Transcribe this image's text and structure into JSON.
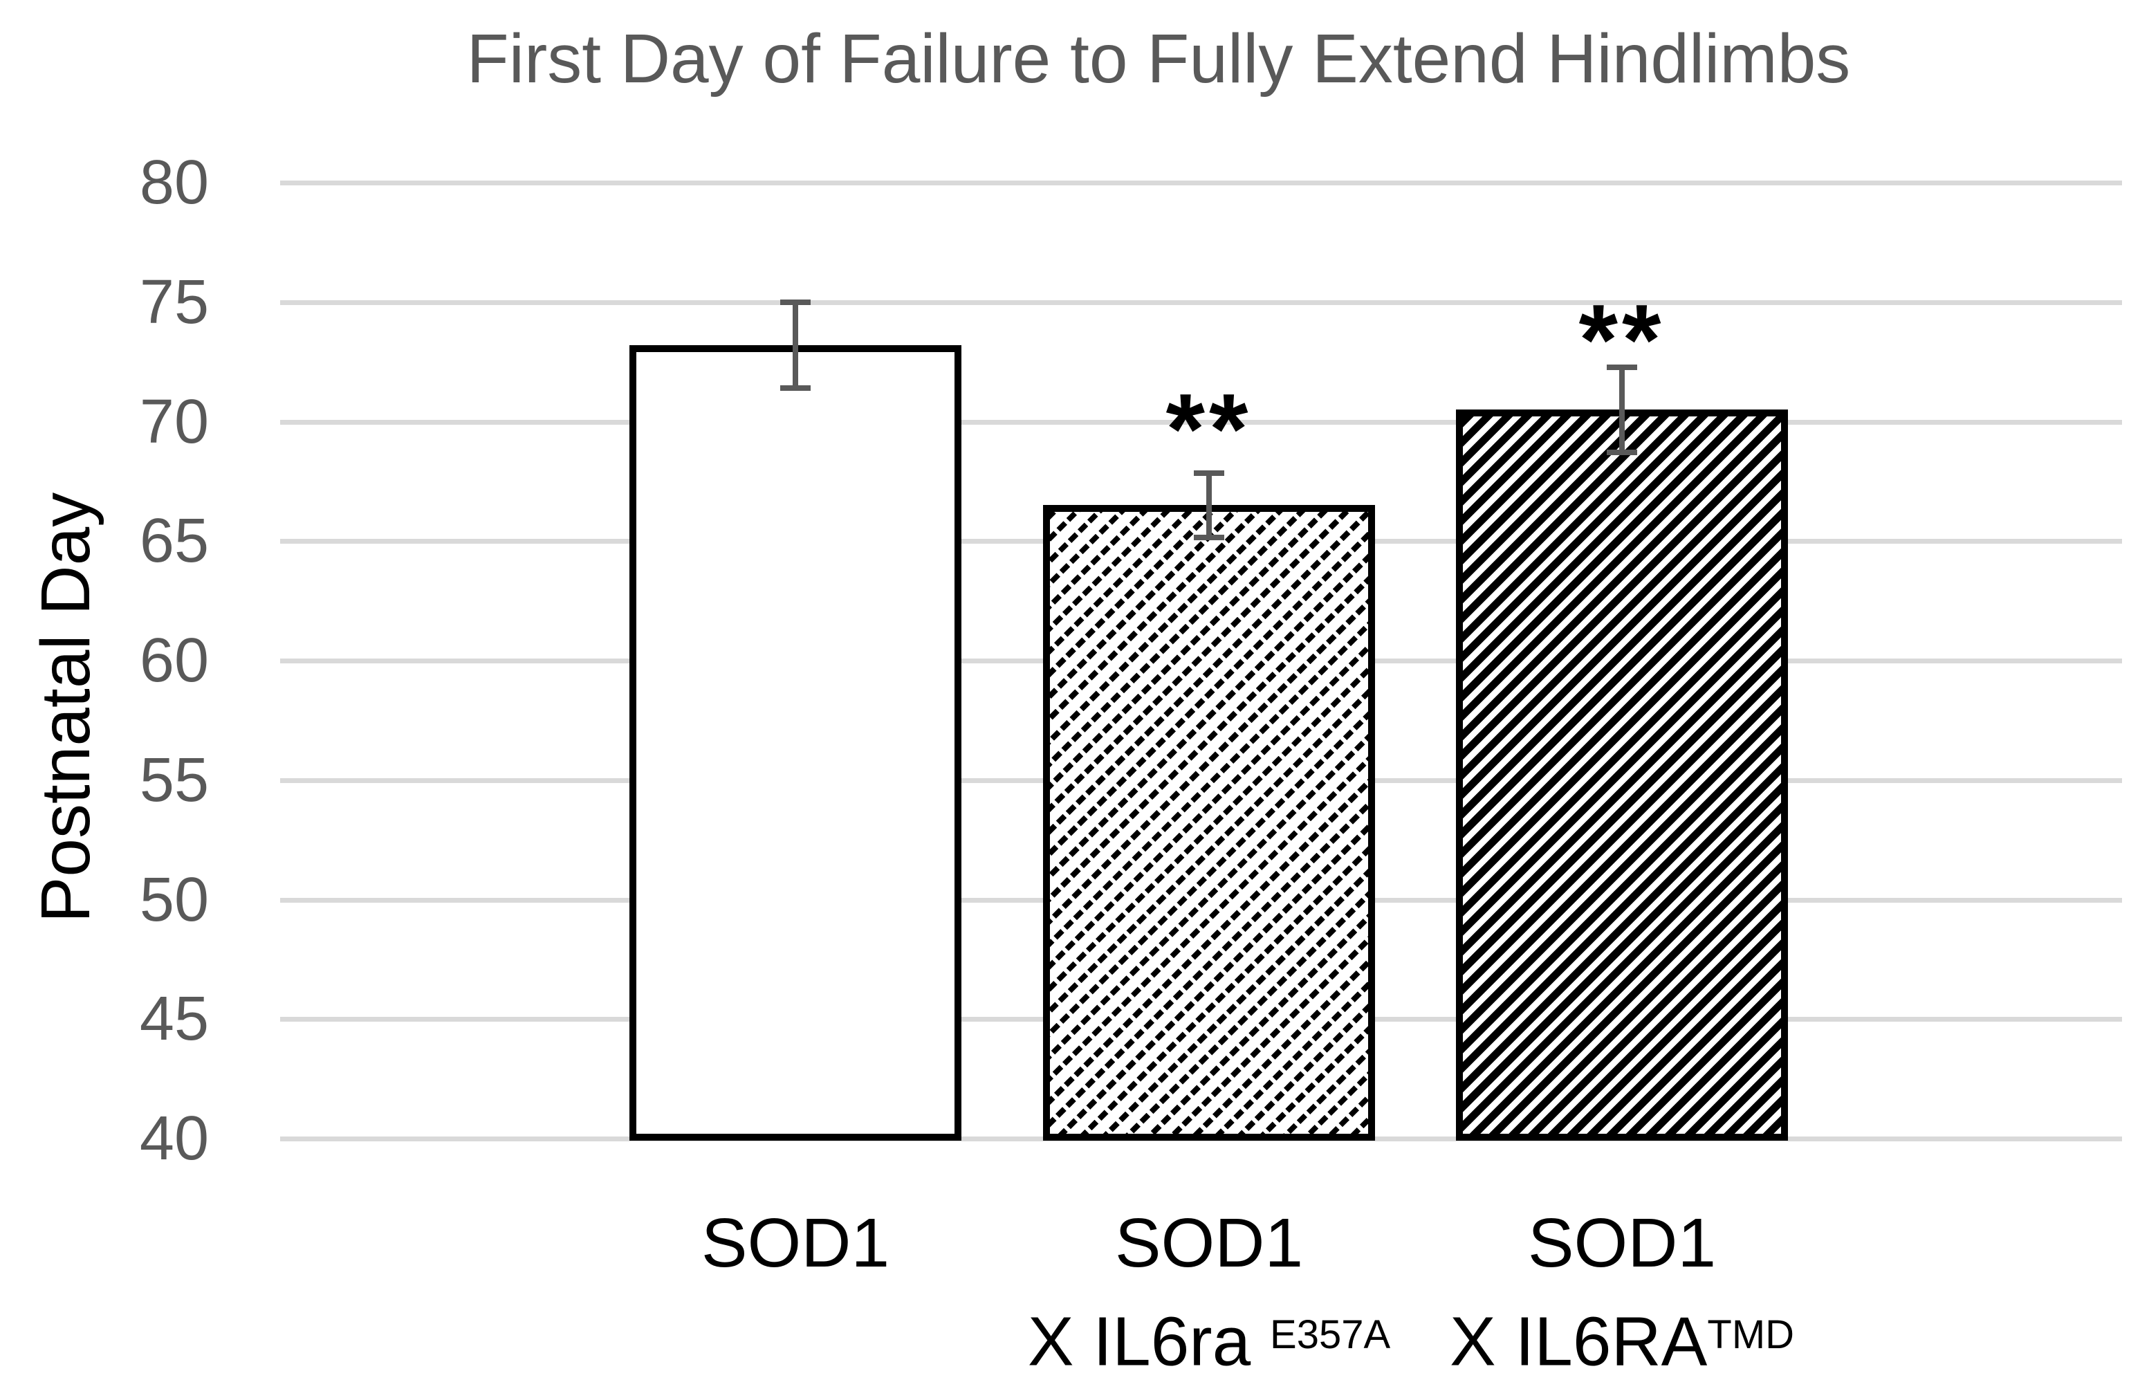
{
  "title": "First Day of Failure to Fully Extend Hindlimbs",
  "y_axis": {
    "label": "Postnatal Day",
    "ticks": [
      80,
      75,
      70,
      65,
      60,
      55,
      50,
      45,
      40
    ],
    "min": 40,
    "max": 80
  },
  "chart_data": {
    "type": "bar",
    "title": "First Day of Failure to Fully Extend Hindlimbs",
    "ylabel": "Postnatal Day",
    "ylim": [
      40,
      80
    ],
    "grid": "horizontal-light-gray",
    "legend": "none",
    "categories": [
      {
        "line1": "SOD1",
        "line2": "",
        "line2_sup": ""
      },
      {
        "line1": "SOD1",
        "line2": "X IL6ra ",
        "line2_sup": "E357A"
      },
      {
        "line1": "SOD1",
        "line2": "X IL6RA",
        "line2_sup": "TMD"
      }
    ],
    "series": [
      {
        "name": "First day of failure to fully extend hindlimbs",
        "values": [
          73.2,
          66.5,
          70.5
        ],
        "errors": [
          1.9,
          1.45,
          1.9
        ],
        "significance": [
          "",
          "**",
          "**"
        ],
        "fills": [
          "solid-white",
          "light-diagonal-hatch",
          "dark-diagonal-hatch"
        ]
      }
    ]
  },
  "colors": {
    "background": "#FFFFFF",
    "title_text": "#595959",
    "tick_text": "#595959",
    "axis_title_text": "#000000",
    "gridline": "#D9D9D9",
    "error_bar": "#595959",
    "bar_border": "#000000",
    "significance_marker": "#000000"
  }
}
